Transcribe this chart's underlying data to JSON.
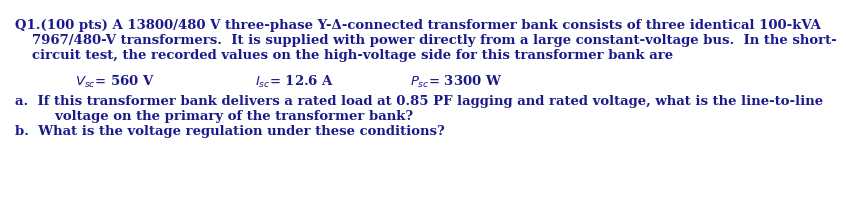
{
  "line1": "Q1.(100 pts) A 13800/480 V three-phase Y-Δ-connected transformer bank consists of three identical 100-kVA",
  "line2": "7967/480-V transformers.  It is supplied with power directly from a large constant-voltage bus.  In the short-",
  "line3": "circuit test, the recorded values on the high-voltage side for this transformer bank are",
  "vsc": "$V_{sc}$= 560 V",
  "isc": "$I_{sc}$= 12.6 A",
  "psc": "$P_{sc}$= 3300 W",
  "part_a1": "a.  If this transformer bank delivers a rated load at 0.85 PF lagging and rated voltage, what is the line-to-line",
  "part_a2": "     voltage on the primary of the transformer bank?",
  "part_b": "b.  What is the voltage regulation under these conditions?",
  "text_color": "#1a1a8c",
  "bg_color": "#ffffff",
  "fontsize": 9.5
}
